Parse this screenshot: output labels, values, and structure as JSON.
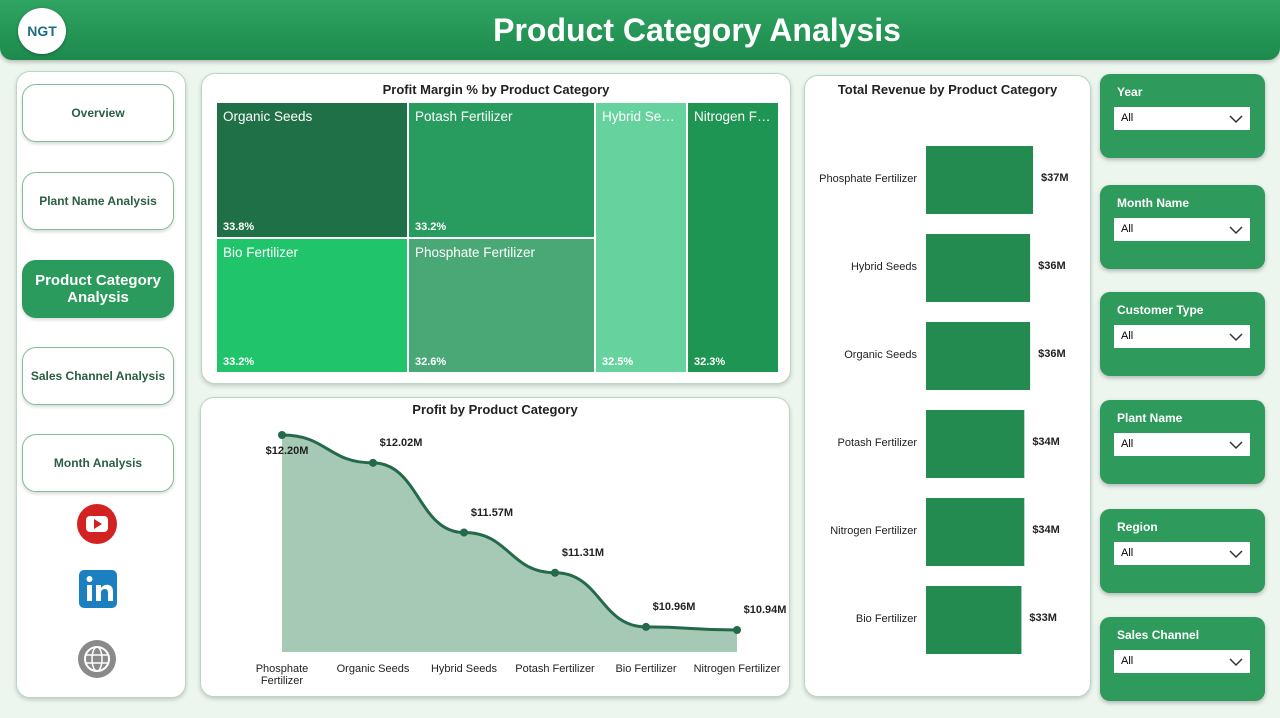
{
  "header": {
    "logo": "NGT",
    "title": "Product Category Analysis"
  },
  "nav": [
    "Overview",
    "Plant Name Analysis",
    "Product Category Analysis",
    "Sales Channel Analysis",
    "Month Analysis"
  ],
  "filters": [
    {
      "label": "Year",
      "value": "All"
    },
    {
      "label": "Month Name",
      "value": "All"
    },
    {
      "label": "Customer Type",
      "value": "All"
    },
    {
      "label": "Plant Name",
      "value": "All"
    },
    {
      "label": "Region",
      "value": "All"
    },
    {
      "label": "Sales Channel",
      "value": "All"
    }
  ],
  "chart_data": [
    {
      "type": "treemap",
      "title": "Profit Margin % by Product Category",
      "categories": [
        "Organic Seeds",
        "Potash Fertilizer",
        "Bio Fertilizer",
        "Phosphate Fertilizer",
        "Hybrid Seeds",
        "Nitrogen Fertilizer"
      ],
      "values": [
        33.8,
        33.2,
        33.2,
        32.6,
        32.5,
        32.3
      ],
      "value_labels": [
        "33.8%",
        "33.2%",
        "33.2%",
        "32.6%",
        "32.5%",
        "32.3%"
      ],
      "colors": [
        "#1f7046",
        "#289b5f",
        "#1fc46b",
        "#4aa877",
        "#66d39e",
        "#1e9553"
      ]
    },
    {
      "type": "area",
      "title": "Profit by Product Category",
      "categories": [
        "Phosphate Fertilizer",
        "Organic Seeds",
        "Hybrid Seeds",
        "Potash Fertilizer",
        "Bio Fertilizer",
        "Nitrogen Fertilizer"
      ],
      "values": [
        12.2,
        12.02,
        11.57,
        11.31,
        10.96,
        10.94
      ],
      "value_labels": [
        "$12.20M",
        "$12.02M",
        "$11.57M",
        "$11.31M",
        "$10.96M",
        "$10.94M"
      ],
      "color": "#23694a",
      "fill": "#a6c9b5"
    },
    {
      "type": "bar",
      "orientation": "horizontal",
      "title": "Total Revenue by Product Category",
      "categories": [
        "Phosphate Fertilizer",
        "Hybrid Seeds",
        "Organic Seeds",
        "Potash Fertilizer",
        "Nitrogen Fertilizer",
        "Bio Fertilizer"
      ],
      "values": [
        37,
        36,
        36,
        34,
        34,
        33
      ],
      "value_labels": [
        "$37M",
        "$36M",
        "$36M",
        "$34M",
        "$34M",
        "$33M"
      ],
      "color": "#238a50"
    }
  ]
}
